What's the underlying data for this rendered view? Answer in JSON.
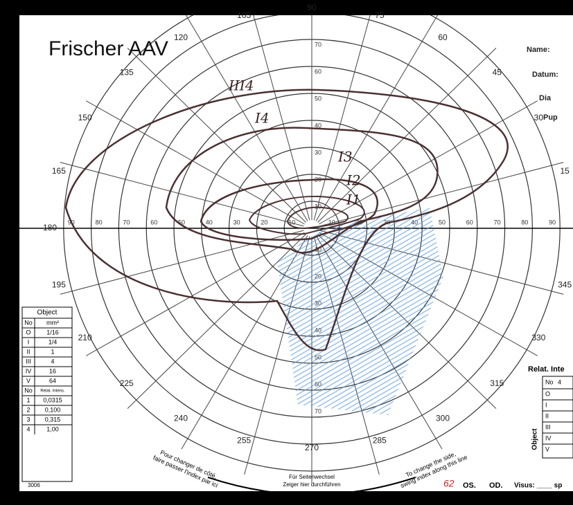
{
  "title": "Frischer AAV",
  "form": {
    "angle_labels": [
      15,
      30,
      45,
      60,
      75,
      90,
      105,
      120,
      135,
      150,
      165,
      180,
      195,
      210,
      225,
      240,
      255,
      270,
      285,
      300,
      315,
      330,
      345
    ],
    "radial_labels": [
      10,
      20,
      30,
      40,
      50,
      60,
      70,
      80,
      90
    ]
  },
  "isopter_labels": [
    "III4",
    "I4",
    "I3",
    "I2",
    "I1"
  ],
  "header_fields": [
    "Name:",
    "Datum:",
    "Dia",
    "Pup"
  ],
  "object_table": {
    "title": "Object",
    "head": [
      "No",
      "mm²"
    ],
    "rows": [
      [
        "O",
        "1/16"
      ],
      [
        "I",
        "1/4"
      ],
      [
        "II",
        "1"
      ],
      [
        "III",
        "4"
      ],
      [
        "IV",
        "16"
      ],
      [
        "V",
        "64"
      ]
    ],
    "head2": [
      "No",
      "Relat. Intens."
    ],
    "rows2": [
      [
        "1",
        "0,0315"
      ],
      [
        "2",
        "0,100"
      ],
      [
        "3",
        "0,315"
      ],
      [
        "4",
        "1,00"
      ]
    ]
  },
  "relat_table": {
    "title": "Relat. Inte",
    "head": [
      "No",
      "4"
    ],
    "rows": [
      "O",
      "I",
      "II",
      "III",
      "IV",
      "V"
    ],
    "side": "Object"
  },
  "footer": {
    "left": [
      "Pour changer de côté,",
      "faire passer l'index par ici"
    ],
    "center": [
      "Für Seitenwechsel",
      "Zeiger hier durchführen"
    ],
    "right": [
      "To change the side,",
      "swing index along this line"
    ],
    "os": "OS.",
    "od": "OD.",
    "visus": "Visus: ____ sp",
    "code": "3006",
    "mark": "62"
  }
}
